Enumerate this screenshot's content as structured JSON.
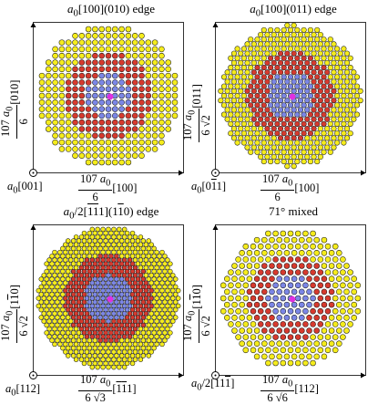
{
  "panels": [
    {
      "title_html": "<i>a</i><sub>0</sub>[100](010) edge",
      "origin_label_html": "<i>a</i><sub>0</sub>[001]",
      "x_label": {
        "num_html": "107 <i>a</i><sub>0</sub>",
        "den_html": "6",
        "suffix_html": "[100]"
      },
      "y_label": {
        "num_html": "107 <i>a</i><sub>0</sub>",
        "den_html": "6",
        "suffix_html": "[010]"
      },
      "lattice": "square"
    },
    {
      "title_html": "<i>a</i><sub>0</sub>[100](011) edge",
      "origin_label_html": "<i>a</i><sub>0</sub>[0<span class=\"ov\">1</span>1]",
      "x_label": {
        "num_html": "107 <i>a</i><sub>0</sub>",
        "den_html": "6",
        "suffix_html": "[100]"
      },
      "y_label": {
        "num_html": "107 <i>a</i><sub>0</sub>",
        "den_html": "6 √2",
        "suffix_html": "[011]"
      },
      "lattice": "rect"
    },
    {
      "title_html": "<i>a</i><sub>0</sub>/2[<span class=\"ov\">1</span><span class=\"ov\">1</span>1](1<span class=\"ov\">1</span>0) edge",
      "origin_label_html": "<i>a</i><sub>0</sub>[112]",
      "x_label": {
        "num_html": "107 <i>a</i><sub>0</sub>",
        "den_html": "6 √3",
        "suffix_html": "[<span class=\"ov\">1</span><span class=\"ov\">1</span>1]"
      },
      "y_label": {
        "num_html": "107 <i>a</i><sub>0</sub>",
        "den_html": "6 √2",
        "suffix_html": "[1<span class=\"ov\">1</span>0]"
      },
      "lattice": "dense"
    },
    {
      "title_html": "71° mixed",
      "origin_label_html": "<span class=\"frac-o\"><i>a</i><sub>0</sub>/2</span>[11<span class=\"ov\">1</span>]",
      "x_label": {
        "num_html": "107 <i>a</i><sub>0</sub>",
        "den_html": "6 √6",
        "suffix_html": "[112]"
      },
      "y_label": {
        "num_html": "107 <i>a</i><sub>0</sub>",
        "den_html": "6 √2",
        "suffix_html": "[1<span class=\"ov\">1</span>0]"
      },
      "lattice": "hex"
    }
  ],
  "colors": {
    "outer_atoms": "#f5ec1c",
    "middle_atoms": "#d63a2e",
    "inner_atoms": "#7b86e6",
    "core_marker": "#e030e0",
    "atom_outline": "#1a1a1a"
  }
}
